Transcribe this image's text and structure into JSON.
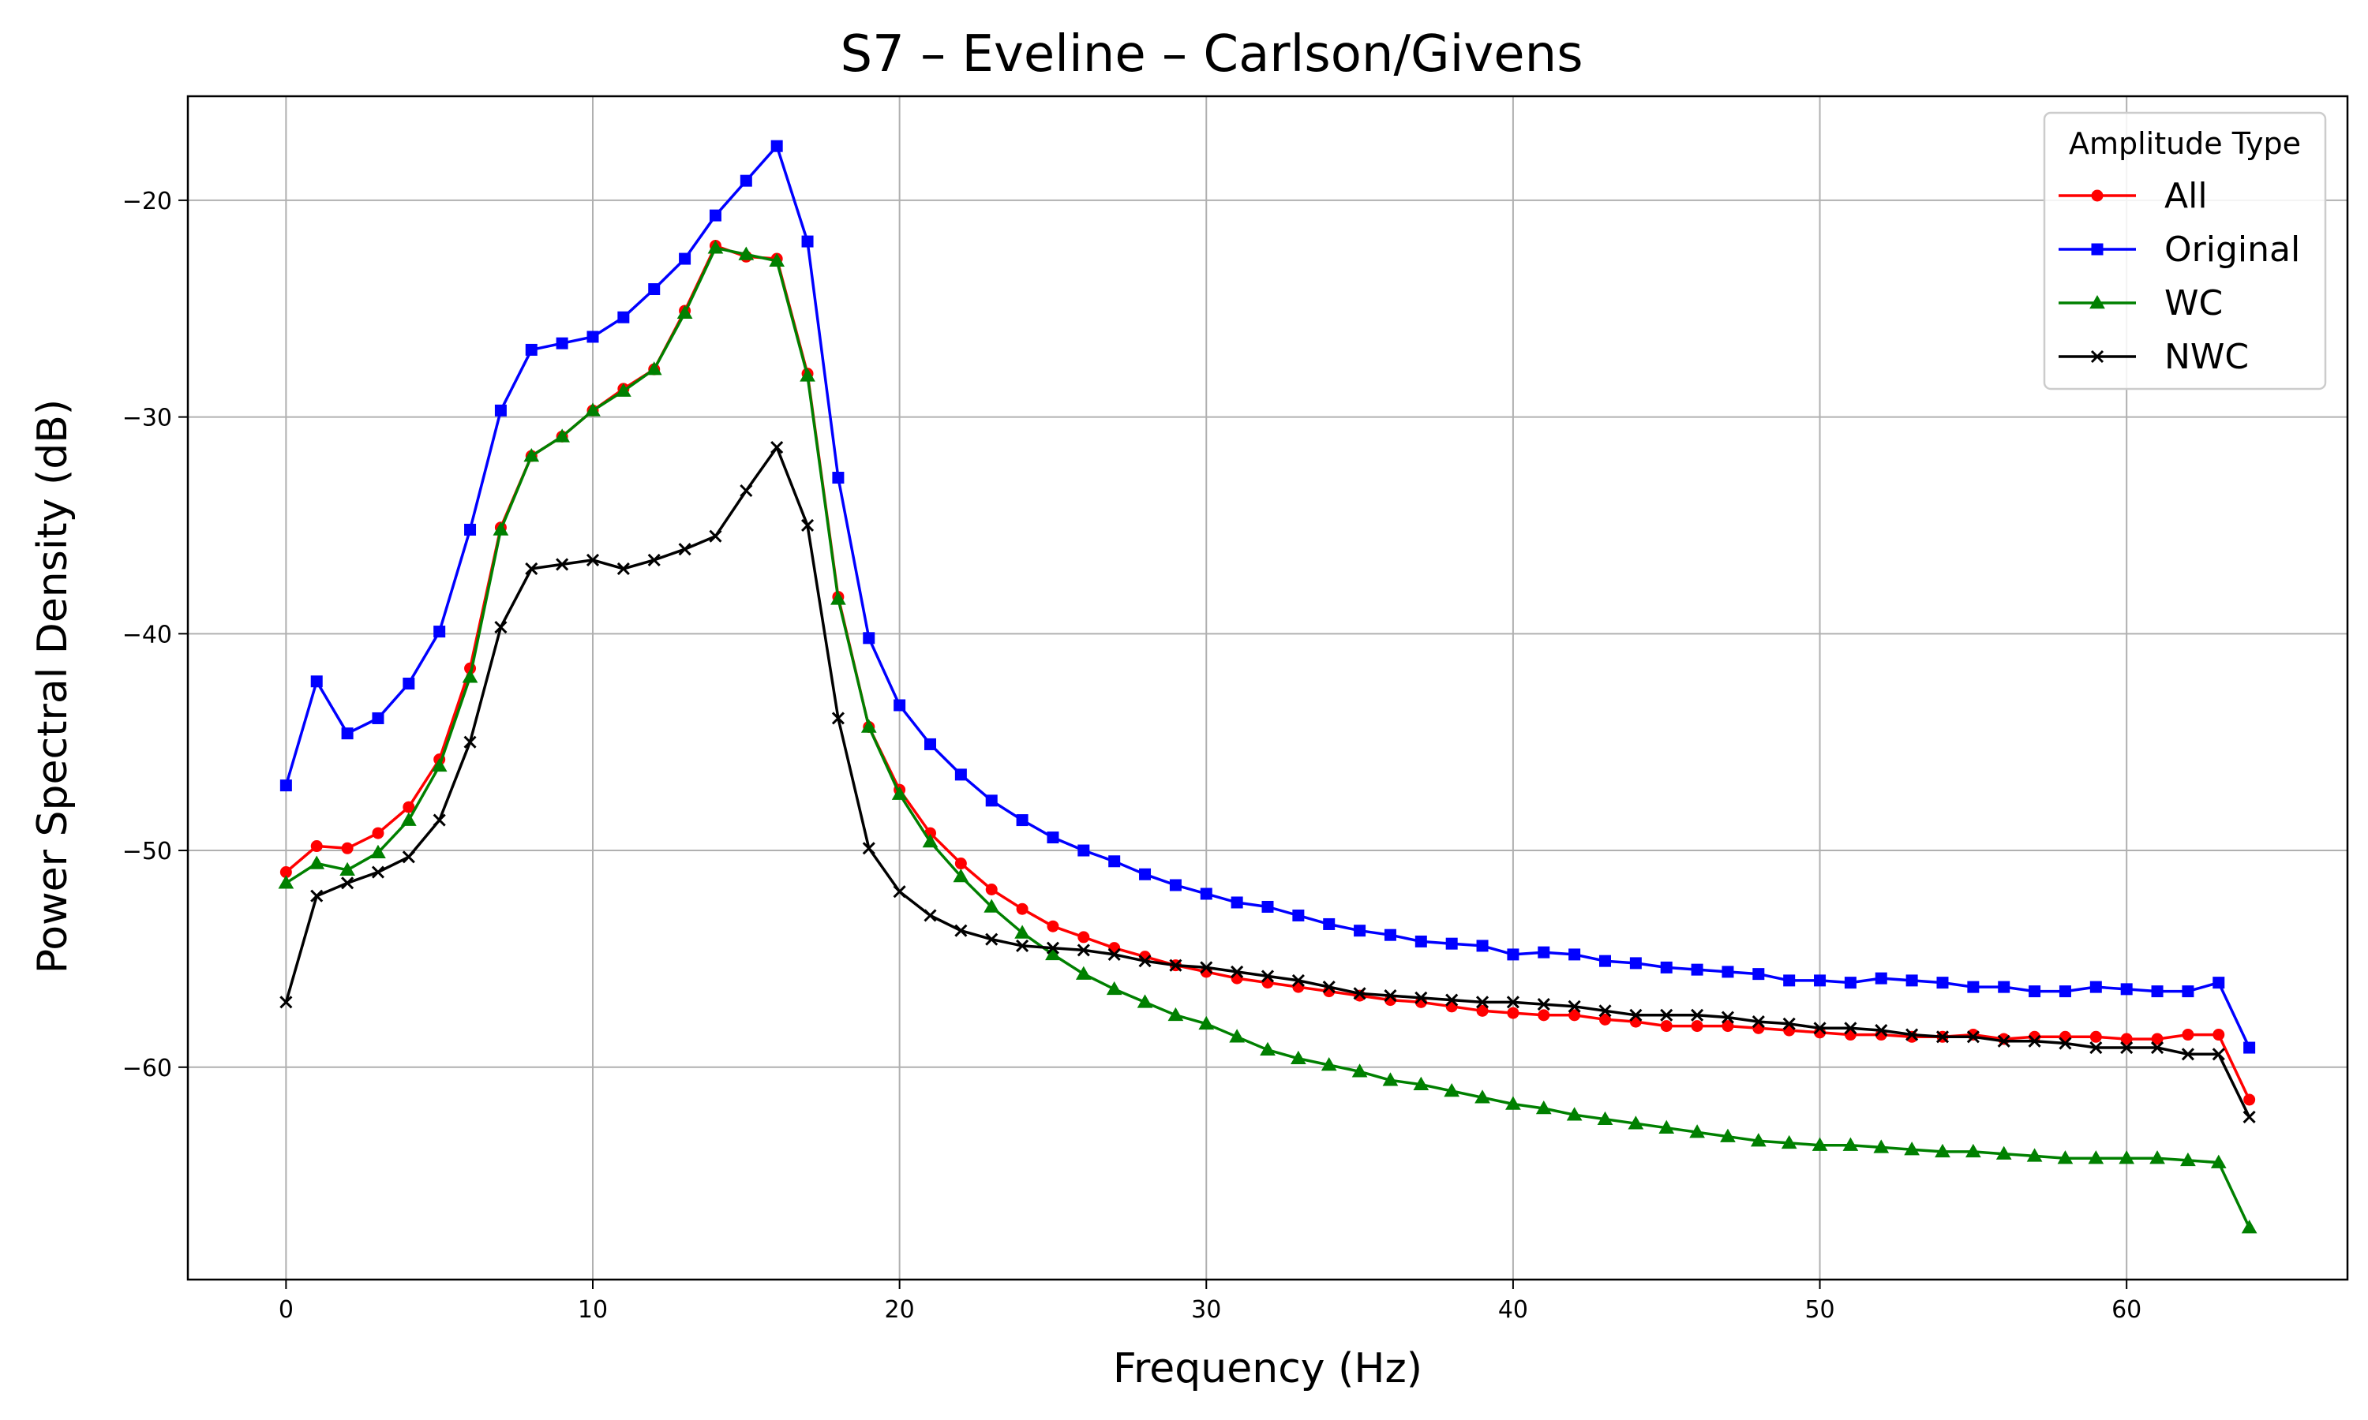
{
  "chart_data": {
    "type": "line",
    "title": "S7 – Eveline – Carlson/Givens",
    "xlabel": "Frequency (Hz)",
    "ylabel": "Power Spectral Density (dB)",
    "xlim": [
      -3.2,
      67.2
    ],
    "ylim": [
      -69.8,
      -15.2
    ],
    "xticks": [
      0,
      10,
      20,
      30,
      40,
      50,
      60
    ],
    "yticks": [
      -60,
      -50,
      -40,
      -30,
      -20
    ],
    "grid": true,
    "legend": {
      "title": "Amplitude Type",
      "placement": "top-right"
    },
    "x": [
      0,
      1,
      2,
      3,
      4,
      5,
      6,
      7,
      8,
      9,
      10,
      11,
      12,
      13,
      14,
      15,
      16,
      17,
      18,
      19,
      20,
      21,
      22,
      23,
      24,
      25,
      26,
      27,
      28,
      29,
      30,
      31,
      32,
      33,
      34,
      35,
      36,
      37,
      38,
      39,
      40,
      41,
      42,
      43,
      44,
      45,
      46,
      47,
      48,
      49,
      50,
      51,
      52,
      53,
      54,
      55,
      56,
      57,
      58,
      59,
      60,
      61,
      62,
      63,
      64
    ],
    "series": [
      {
        "name": "All",
        "color": "#ff0000",
        "marker": "circle",
        "values": [
          -51.0,
          -49.8,
          -49.9,
          -49.2,
          -48.0,
          -45.8,
          -41.6,
          -35.1,
          -31.8,
          -30.9,
          -29.7,
          -28.7,
          -27.8,
          -25.1,
          -22.1,
          -22.6,
          -22.7,
          -28.0,
          -38.3,
          -44.3,
          -47.2,
          -49.2,
          -50.6,
          -51.8,
          -52.7,
          -53.5,
          -54.0,
          -54.5,
          -54.9,
          -55.3,
          -55.6,
          -55.9,
          -56.1,
          -56.3,
          -56.5,
          -56.7,
          -56.9,
          -57.0,
          -57.2,
          -57.4,
          -57.5,
          -57.6,
          -57.6,
          -57.8,
          -57.9,
          -58.1,
          -58.1,
          -58.1,
          -58.2,
          -58.3,
          -58.4,
          -58.5,
          -58.5,
          -58.6,
          -58.6,
          -58.5,
          -58.7,
          -58.6,
          -58.6,
          -58.6,
          -58.7,
          -58.7,
          -58.5,
          -58.5,
          -61.5
        ]
      },
      {
        "name": "Original",
        "color": "#0000ff",
        "marker": "square",
        "values": [
          -47.0,
          -42.2,
          -44.6,
          -43.9,
          -42.3,
          -39.9,
          -35.2,
          -29.7,
          -26.9,
          -26.6,
          -26.3,
          -25.4,
          -24.1,
          -22.7,
          -20.7,
          -19.1,
          -17.5,
          -21.9,
          -32.8,
          -40.2,
          -43.3,
          -45.1,
          -46.5,
          -47.7,
          -48.6,
          -49.4,
          -50.0,
          -50.5,
          -51.1,
          -51.6,
          -52.0,
          -52.4,
          -52.6,
          -53.0,
          -53.4,
          -53.7,
          -53.9,
          -54.2,
          -54.3,
          -54.4,
          -54.8,
          -54.7,
          -54.8,
          -55.1,
          -55.2,
          -55.4,
          -55.5,
          -55.6,
          -55.7,
          -56.0,
          -56.0,
          -56.1,
          -55.9,
          -56.0,
          -56.1,
          -56.3,
          -56.3,
          -56.5,
          -56.5,
          -56.3,
          -56.4,
          -56.5,
          -56.5,
          -56.1,
          -59.1
        ]
      },
      {
        "name": "WC",
        "color": "#008000",
        "marker": "triangle",
        "values": [
          -51.5,
          -50.6,
          -50.9,
          -50.1,
          -48.6,
          -46.1,
          -42.0,
          -35.2,
          -31.8,
          -30.9,
          -29.7,
          -28.8,
          -27.8,
          -25.2,
          -22.2,
          -22.5,
          -22.8,
          -28.1,
          -38.4,
          -44.3,
          -47.4,
          -49.6,
          -51.2,
          -52.6,
          -53.8,
          -54.8,
          -55.7,
          -56.4,
          -57.0,
          -57.6,
          -58.0,
          -58.6,
          -59.2,
          -59.6,
          -59.9,
          -60.2,
          -60.6,
          -60.8,
          -61.1,
          -61.4,
          -61.7,
          -61.9,
          -62.2,
          -62.4,
          -62.6,
          -62.8,
          -63.0,
          -63.2,
          -63.4,
          -63.5,
          -63.6,
          -63.6,
          -63.7,
          -63.8,
          -63.9,
          -63.9,
          -64.0,
          -64.1,
          -64.2,
          -64.2,
          -64.2,
          -64.2,
          -64.3,
          -64.4,
          -67.4
        ]
      },
      {
        "name": "NWC",
        "color": "#000000",
        "marker": "x",
        "values": [
          -57.0,
          -52.1,
          -51.5,
          -51.0,
          -50.3,
          -48.6,
          -45.0,
          -39.7,
          -37.0,
          -36.8,
          -36.6,
          -37.0,
          -36.6,
          -36.1,
          -35.5,
          -33.4,
          -31.4,
          -35.0,
          -43.9,
          -49.9,
          -51.9,
          -53.0,
          -53.7,
          -54.1,
          -54.4,
          -54.5,
          -54.6,
          -54.8,
          -55.1,
          -55.3,
          -55.4,
          -55.6,
          -55.8,
          -56.0,
          -56.3,
          -56.6,
          -56.7,
          -56.8,
          -56.9,
          -57.0,
          -57.0,
          -57.1,
          -57.2,
          -57.4,
          -57.6,
          -57.6,
          -57.6,
          -57.7,
          -57.9,
          -58.0,
          -58.2,
          -58.2,
          -58.3,
          -58.5,
          -58.6,
          -58.6,
          -58.8,
          -58.8,
          -58.9,
          -59.1,
          -59.1,
          -59.1,
          -59.4,
          -59.4,
          -62.3
        ]
      }
    ]
  }
}
